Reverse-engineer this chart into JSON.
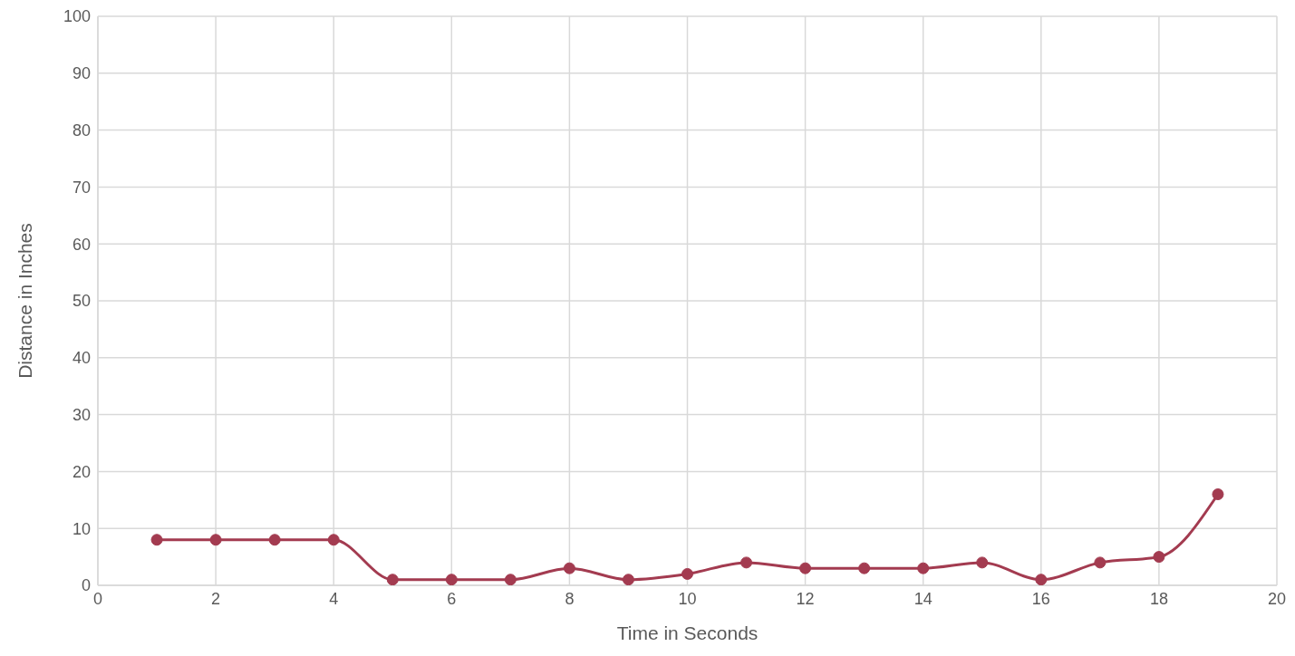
{
  "chart_data": {
    "type": "line",
    "xlabel": "Time in Seconds",
    "ylabel": "Distance in Inches",
    "x": [
      1,
      2,
      3,
      4,
      5,
      6,
      7,
      8,
      9,
      10,
      11,
      12,
      13,
      14,
      15,
      16,
      17,
      18,
      19
    ],
    "series": [
      {
        "color": "#a33b50",
        "values": [
          8,
          8,
          8,
          8,
          1,
          1,
          1,
          3,
          1,
          2,
          4,
          3,
          3,
          3,
          4,
          1,
          4,
          5,
          16
        ]
      }
    ],
    "xlim": [
      0,
      20
    ],
    "xticks": [
      0,
      2,
      4,
      6,
      8,
      10,
      12,
      14,
      16,
      18,
      20
    ],
    "ylim": [
      0,
      100
    ],
    "yticks": [
      0,
      10,
      20,
      30,
      40,
      50,
      60,
      70,
      80,
      90,
      100
    ],
    "grid": true,
    "marker": "circle",
    "line_style": "solid"
  }
}
